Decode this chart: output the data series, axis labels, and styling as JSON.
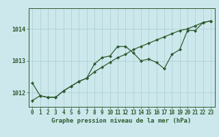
{
  "background_color": "#cce8ed",
  "grid_color": "#aacccc",
  "line_color": "#2d5a2d",
  "title": "Graphe pression niveau de la mer (hPa)",
  "ylabel_ticks": [
    1012,
    1013,
    1014
  ],
  "xlim": [
    -0.5,
    23.5
  ],
  "ylim": [
    1011.55,
    1014.65
  ],
  "hours": [
    0,
    1,
    2,
    3,
    4,
    5,
    6,
    7,
    8,
    9,
    10,
    11,
    12,
    13,
    14,
    15,
    16,
    17,
    18,
    19,
    20,
    21,
    22,
    23
  ],
  "line1": [
    1012.3,
    1011.9,
    1011.85,
    1011.85,
    1012.05,
    1012.2,
    1012.35,
    1012.45,
    1012.9,
    1013.1,
    1013.15,
    1013.45,
    1013.45,
    1013.25,
    1013.0,
    1013.05,
    1012.95,
    1012.75,
    1013.2,
    1013.35,
    1013.95,
    1013.95,
    1014.2,
    1014.25
  ],
  "line2": [
    1011.75,
    1011.9,
    1011.85,
    1011.85,
    1012.05,
    1012.2,
    1012.35,
    1012.45,
    1012.65,
    1012.8,
    1012.95,
    1013.1,
    1013.2,
    1013.35,
    1013.45,
    1013.55,
    1013.65,
    1013.75,
    1013.85,
    1013.95,
    1014.0,
    1014.1,
    1014.2,
    1014.25
  ],
  "tick_fontsize": 5.5,
  "label_fontsize": 6.5
}
